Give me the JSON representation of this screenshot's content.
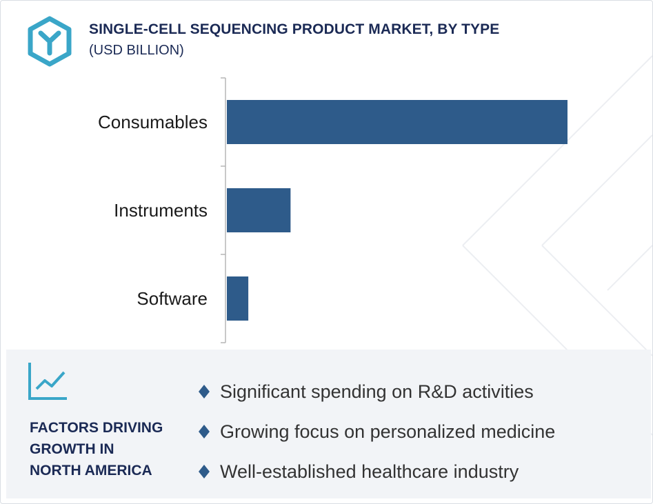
{
  "header": {
    "title": "SINGLE-CELL SEQUENCING PRODUCT MARKET, BY TYPE",
    "subtitle": "(USD BILLION)",
    "logo_icon": "hexagon-y-logo-icon"
  },
  "colors": {
    "bar": "#2e5b8a",
    "accent": "#3aa6c8",
    "heading": "#1b2a55",
    "panel_bg": "#f2f4f7"
  },
  "chart_data": {
    "type": "bar",
    "orientation": "horizontal",
    "title": "SINGLE-CELL SEQUENCING PRODUCT MARKET, BY TYPE",
    "subtitle": "(USD BILLION)",
    "categories": [
      "Consumables",
      "Instruments",
      "Software"
    ],
    "values": [
      100,
      18.7,
      6.3
    ],
    "value_scale": "relative share of the largest bar; no axis values are printed",
    "xlim": [
      0,
      100
    ],
    "grid": false,
    "legend": "none"
  },
  "factors": {
    "icon": "trend-line-chart-icon",
    "bullet_icon": "diamond-bullet-icon",
    "heading_lines": [
      "FACTORS DRIVING",
      "GROWTH IN",
      "NORTH AMERICA"
    ],
    "items": [
      "Significant spending on R&D activities",
      "Growing focus on personalized medicine",
      "Well-established healthcare industry"
    ]
  }
}
